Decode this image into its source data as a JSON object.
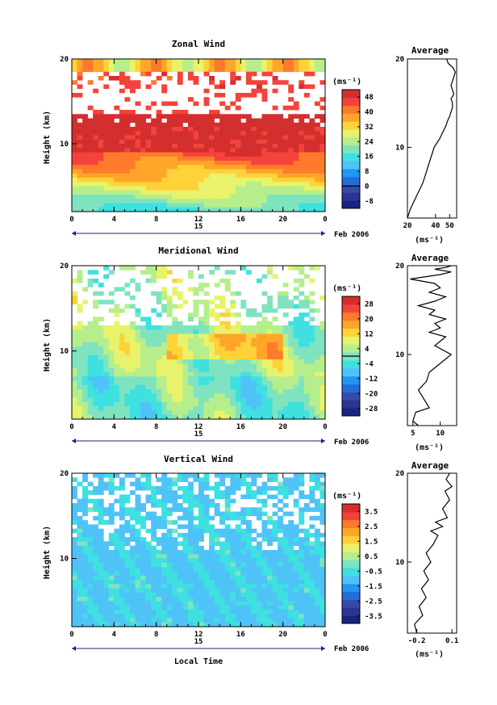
{
  "figure": {
    "date_label": "Feb 2006",
    "x_axis_label": "Local Time",
    "height_label": "Height (km)",
    "unit_label": "(ms⁻¹)",
    "average_title": "Average"
  },
  "colors": {
    "palette": [
      "#1a237e",
      "#283593",
      "#3949ab",
      "#1e6fd9",
      "#2196f3",
      "#4fc3f7",
      "#3ee0e0",
      "#7fe3c0",
      "#b6ee8c",
      "#e8f26a",
      "#ffd23a",
      "#ffa628",
      "#ff7a2c",
      "#f4433a",
      "#d32f2f"
    ]
  },
  "panels": [
    {
      "title": "Zonal Wind",
      "y_ticks": [
        "10",
        "20"
      ],
      "x_ticks": [
        "0",
        "4",
        "8",
        "12",
        "16",
        "20",
        "0"
      ],
      "day_label": "15",
      "colorbar_ticks": [
        "48",
        "40",
        "32",
        "24",
        "16",
        "8",
        "0",
        "-8"
      ],
      "avg_x_ticks": [
        "20",
        "40",
        "50"
      ],
      "avg_y_ticks": [
        "10",
        "20"
      ]
    },
    {
      "title": "Meridional Wind",
      "y_ticks": [
        "10",
        "20"
      ],
      "x_ticks": [
        "0",
        "4",
        "8",
        "12",
        "16",
        "20",
        "0"
      ],
      "day_label": "15",
      "colorbar_ticks": [
        "28",
        "20",
        "12",
        "4",
        "-4",
        "-12",
        "-20",
        "-28"
      ],
      "avg_x_ticks": [
        "5",
        "10"
      ],
      "avg_y_ticks": [
        "10",
        "20"
      ]
    },
    {
      "title": "Vertical Wind",
      "y_ticks": [
        "10",
        "20"
      ],
      "x_ticks": [
        "0",
        "4",
        "8",
        "12",
        "16",
        "20",
        "0"
      ],
      "day_label": "15",
      "colorbar_ticks": [
        "3.5",
        "2.5",
        "1.5",
        "0.5",
        "-0.5",
        "-1.5",
        "-2.5",
        "-3.5"
      ],
      "avg_x_ticks": [
        "-0.2",
        "0.1"
      ],
      "avg_y_ticks": [
        "10",
        "20"
      ]
    }
  ],
  "chart_data": [
    {
      "type": "heatmap",
      "title": "Zonal Wind",
      "xlabel": "",
      "ylabel": "Height (km)",
      "x_unit": "local time (h)",
      "xlim": [
        0,
        24
      ],
      "ylim": [
        2,
        20
      ],
      "colorbar_unit": "(ms⁻¹)",
      "colorbar_range": [
        -8,
        56
      ],
      "colorbar_ticks": [
        48,
        40,
        32,
        24,
        16,
        8,
        0,
        -8
      ],
      "profile": {
        "title": "Average",
        "x": [
          20,
          22,
          25,
          28,
          31,
          33,
          35,
          37,
          39,
          41,
          43,
          44.5,
          46,
          47.5,
          48.5,
          50,
          51,
          52,
          52,
          51,
          53,
          52,
          51,
          52,
          53,
          54,
          52.5,
          49,
          48
        ],
        "y": [
          2,
          3,
          4,
          5,
          6,
          7,
          8,
          9,
          10,
          10.5,
          11,
          11.5,
          12,
          12.5,
          13,
          13.5,
          14,
          14.5,
          15,
          15.5,
          16,
          16.5,
          17,
          17.5,
          18,
          18.5,
          19,
          19.5,
          20
        ],
        "xlim": [
          20,
          55
        ],
        "ylim": [
          2,
          20
        ],
        "x_ticks": [
          20,
          40,
          50
        ]
      }
    },
    {
      "type": "heatmap",
      "title": "Meridional Wind",
      "xlabel": "",
      "ylabel": "Height (km)",
      "x_unit": "local time (h)",
      "xlim": [
        0,
        24
      ],
      "ylim": [
        2,
        20
      ],
      "colorbar_unit": "(ms⁻¹)",
      "colorbar_range": [
        -32,
        32
      ],
      "colorbar_ticks": [
        28,
        20,
        12,
        4,
        -4,
        -12,
        -20,
        -28
      ],
      "profile": {
        "title": "Average",
        "x": [
          6,
          5,
          5.5,
          8,
          7,
          6,
          7.5,
          8,
          10,
          12,
          9,
          11,
          8,
          10,
          9,
          11,
          8,
          9,
          6,
          9,
          11,
          8,
          10,
          9,
          4.5,
          10,
          12,
          9,
          11,
          12
        ],
        "y": [
          2,
          2.5,
          3.5,
          4,
          5,
          6,
          7,
          8,
          9,
          10,
          11,
          12,
          12.5,
          13,
          13.5,
          14,
          14.5,
          15,
          15.5,
          16,
          16.5,
          17,
          17.5,
          18,
          18.5,
          19,
          19.3,
          19.6,
          19.8,
          20
        ],
        "xlim": [
          4,
          13
        ],
        "ylim": [
          2,
          20
        ],
        "x_ticks": [
          5,
          10
        ]
      }
    },
    {
      "type": "heatmap",
      "title": "Vertical Wind",
      "xlabel": "Local Time",
      "ylabel": "Height (km)",
      "x_unit": "local time (h)",
      "xlim": [
        0,
        24
      ],
      "ylim": [
        2,
        20
      ],
      "colorbar_unit": "(ms⁻¹)",
      "colorbar_range": [
        -4,
        4
      ],
      "colorbar_ticks": [
        3.5,
        2.5,
        1.5,
        0.5,
        -0.5,
        -1.5,
        -2.5,
        -3.5
      ],
      "profile": {
        "title": "Average",
        "x": [
          -0.2,
          -0.22,
          -0.15,
          -0.18,
          -0.12,
          -0.16,
          -0.1,
          -0.14,
          -0.08,
          -0.12,
          -0.06,
          -0.02,
          -0.08,
          0.02,
          -0.04,
          0.06,
          0.02,
          0.08,
          0.04,
          0.1,
          0.05,
          0.08
        ],
        "y": [
          2,
          3,
          4,
          5,
          6,
          7,
          8,
          9,
          10,
          11,
          12,
          13,
          13.5,
          14,
          14.5,
          15,
          16,
          17,
          18,
          18.5,
          19.3,
          20
        ],
        "xlim": [
          -0.28,
          0.14
        ],
        "ylim": [
          2,
          20
        ],
        "x_ticks": [
          -0.2,
          0.1
        ]
      }
    }
  ]
}
